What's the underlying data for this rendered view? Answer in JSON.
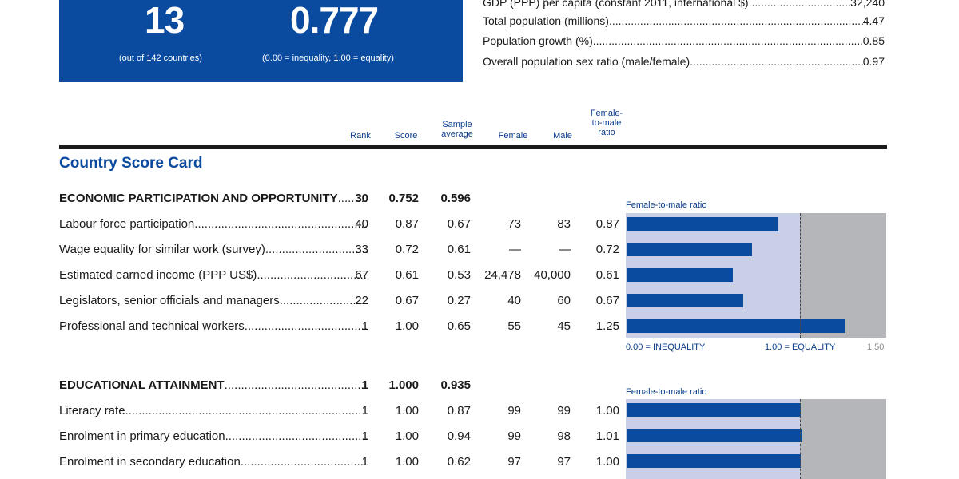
{
  "rank_box": {
    "rank": "13",
    "rank_note": "(out of 142 countries)",
    "score": "0.777",
    "score_note": "(0.00 = inequality, 1.00 = equality)"
  },
  "key_indicators": [
    {
      "label": "GDP (PPP) per capita (constant 2011, international $)",
      "value": "32,240"
    },
    {
      "label": "Total population (millions)",
      "value": "4.47"
    },
    {
      "label": "Population growth (%)",
      "value": "0.85"
    },
    {
      "label": "Overall population sex ratio (male/female)",
      "value": "0.97"
    }
  ],
  "columns": {
    "rank": "Rank",
    "score": "Score",
    "sample_1": "Sample",
    "sample_2": "average",
    "female": "Female",
    "male": "Male",
    "ratio_1": "Female-",
    "ratio_2": "to-male",
    "ratio_3": "ratio"
  },
  "title": "Country Score Card",
  "economic": {
    "label": "ECONOMIC PARTICIPATION AND OPPORTUNITY",
    "rank": "30",
    "score": "0.752",
    "sample": "0.596",
    "chart_caption": "Female-to-male ratio",
    "rows": [
      {
        "label": "Labour force participation",
        "rank": "40",
        "score": "0.87",
        "sample": "0.67",
        "female": "73",
        "male": "83",
        "ratio": "0.87",
        "bar": 0.87
      },
      {
        "label": "Wage equality for similar work (survey)",
        "rank": "33",
        "score": "0.72",
        "sample": "0.61",
        "female": "—",
        "male": "—",
        "ratio": "0.72",
        "bar": 0.72
      },
      {
        "label": "Estimated earned income (PPP US$)",
        "rank": "67",
        "score": "0.61",
        "sample": "0.53",
        "female": "24,478",
        "male": "40,000",
        "ratio": "0.61",
        "bar": 0.61
      },
      {
        "label": "Legislators, senior officials and managers",
        "rank": "22",
        "score": "0.67",
        "sample": "0.27",
        "female": "40",
        "male": "60",
        "ratio": "0.67",
        "bar": 0.67
      },
      {
        "label": "Professional and technical workers",
        "rank": "1",
        "score": "1.00",
        "sample": "0.65",
        "female": "55",
        "male": "45",
        "ratio": "1.25",
        "bar": 1.25
      }
    ],
    "axis": {
      "left": "0.00 = INEQUALITY",
      "mid": "1.00 = EQUALITY",
      "right": "1.50"
    }
  },
  "education": {
    "label": "EDUCATIONAL ATTAINMENT",
    "rank": "1",
    "score": "1.000",
    "sample": "0.935",
    "chart_caption": "Female-to-male ratio",
    "rows": [
      {
        "label": "Literacy rate",
        "rank": "1",
        "score": "1.00",
        "sample": "0.87",
        "female": "99",
        "male": "99",
        "ratio": "1.00",
        "bar": 1.0
      },
      {
        "label": "Enrolment in primary education",
        "rank": "1",
        "score": "1.00",
        "sample": "0.94",
        "female": "99",
        "male": "98",
        "ratio": "1.01",
        "bar": 1.01
      },
      {
        "label": "Enrolment in secondary education",
        "rank": "1",
        "score": "1.00",
        "sample": "0.62",
        "female": "97",
        "male": "97",
        "ratio": "1.00",
        "bar": 1.0
      }
    ]
  },
  "colors": {
    "accent": "#0a4a9f",
    "chart_bg": "#c9cfe6",
    "chart_over": "#b4b6ba"
  }
}
